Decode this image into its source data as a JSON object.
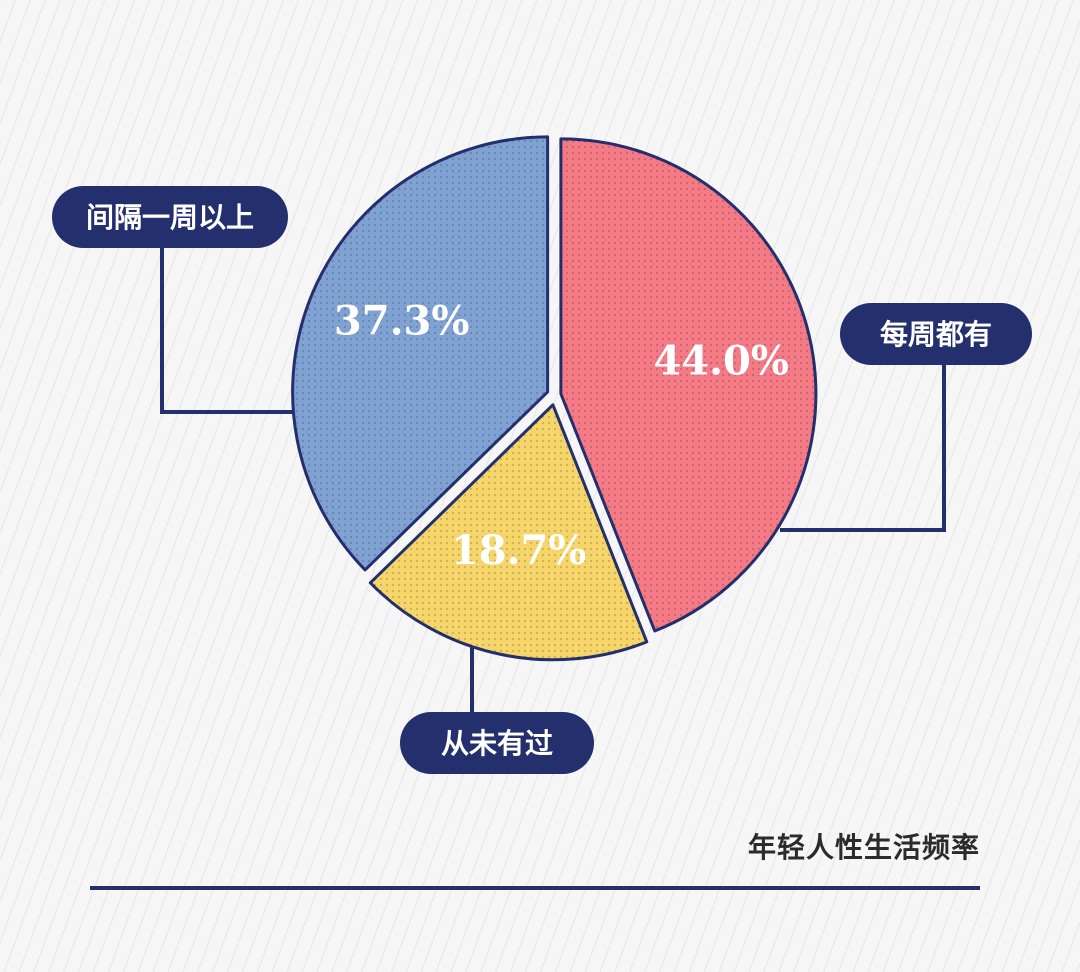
{
  "chart_data": {
    "type": "pie",
    "title": "年轻人性生活频率",
    "slices": [
      {
        "label": "每周都有",
        "value": 44.0,
        "value_label": "44.0%",
        "color": "#f47a86"
      },
      {
        "label": "从未有过",
        "value": 18.7,
        "value_label": "18.7%",
        "color": "#f6d66a"
      },
      {
        "label": "间隔一周以上",
        "value": 37.3,
        "value_label": "37.3%",
        "color": "#7fa2d2"
      }
    ],
    "start_angle_deg": 0,
    "direction": "clockwise"
  },
  "colors": {
    "outline": "#24306e",
    "callout_fill": "#24306e",
    "rule": "#24306e",
    "background": "#f6f6f6",
    "background_stripe": "#d9d9d9"
  }
}
